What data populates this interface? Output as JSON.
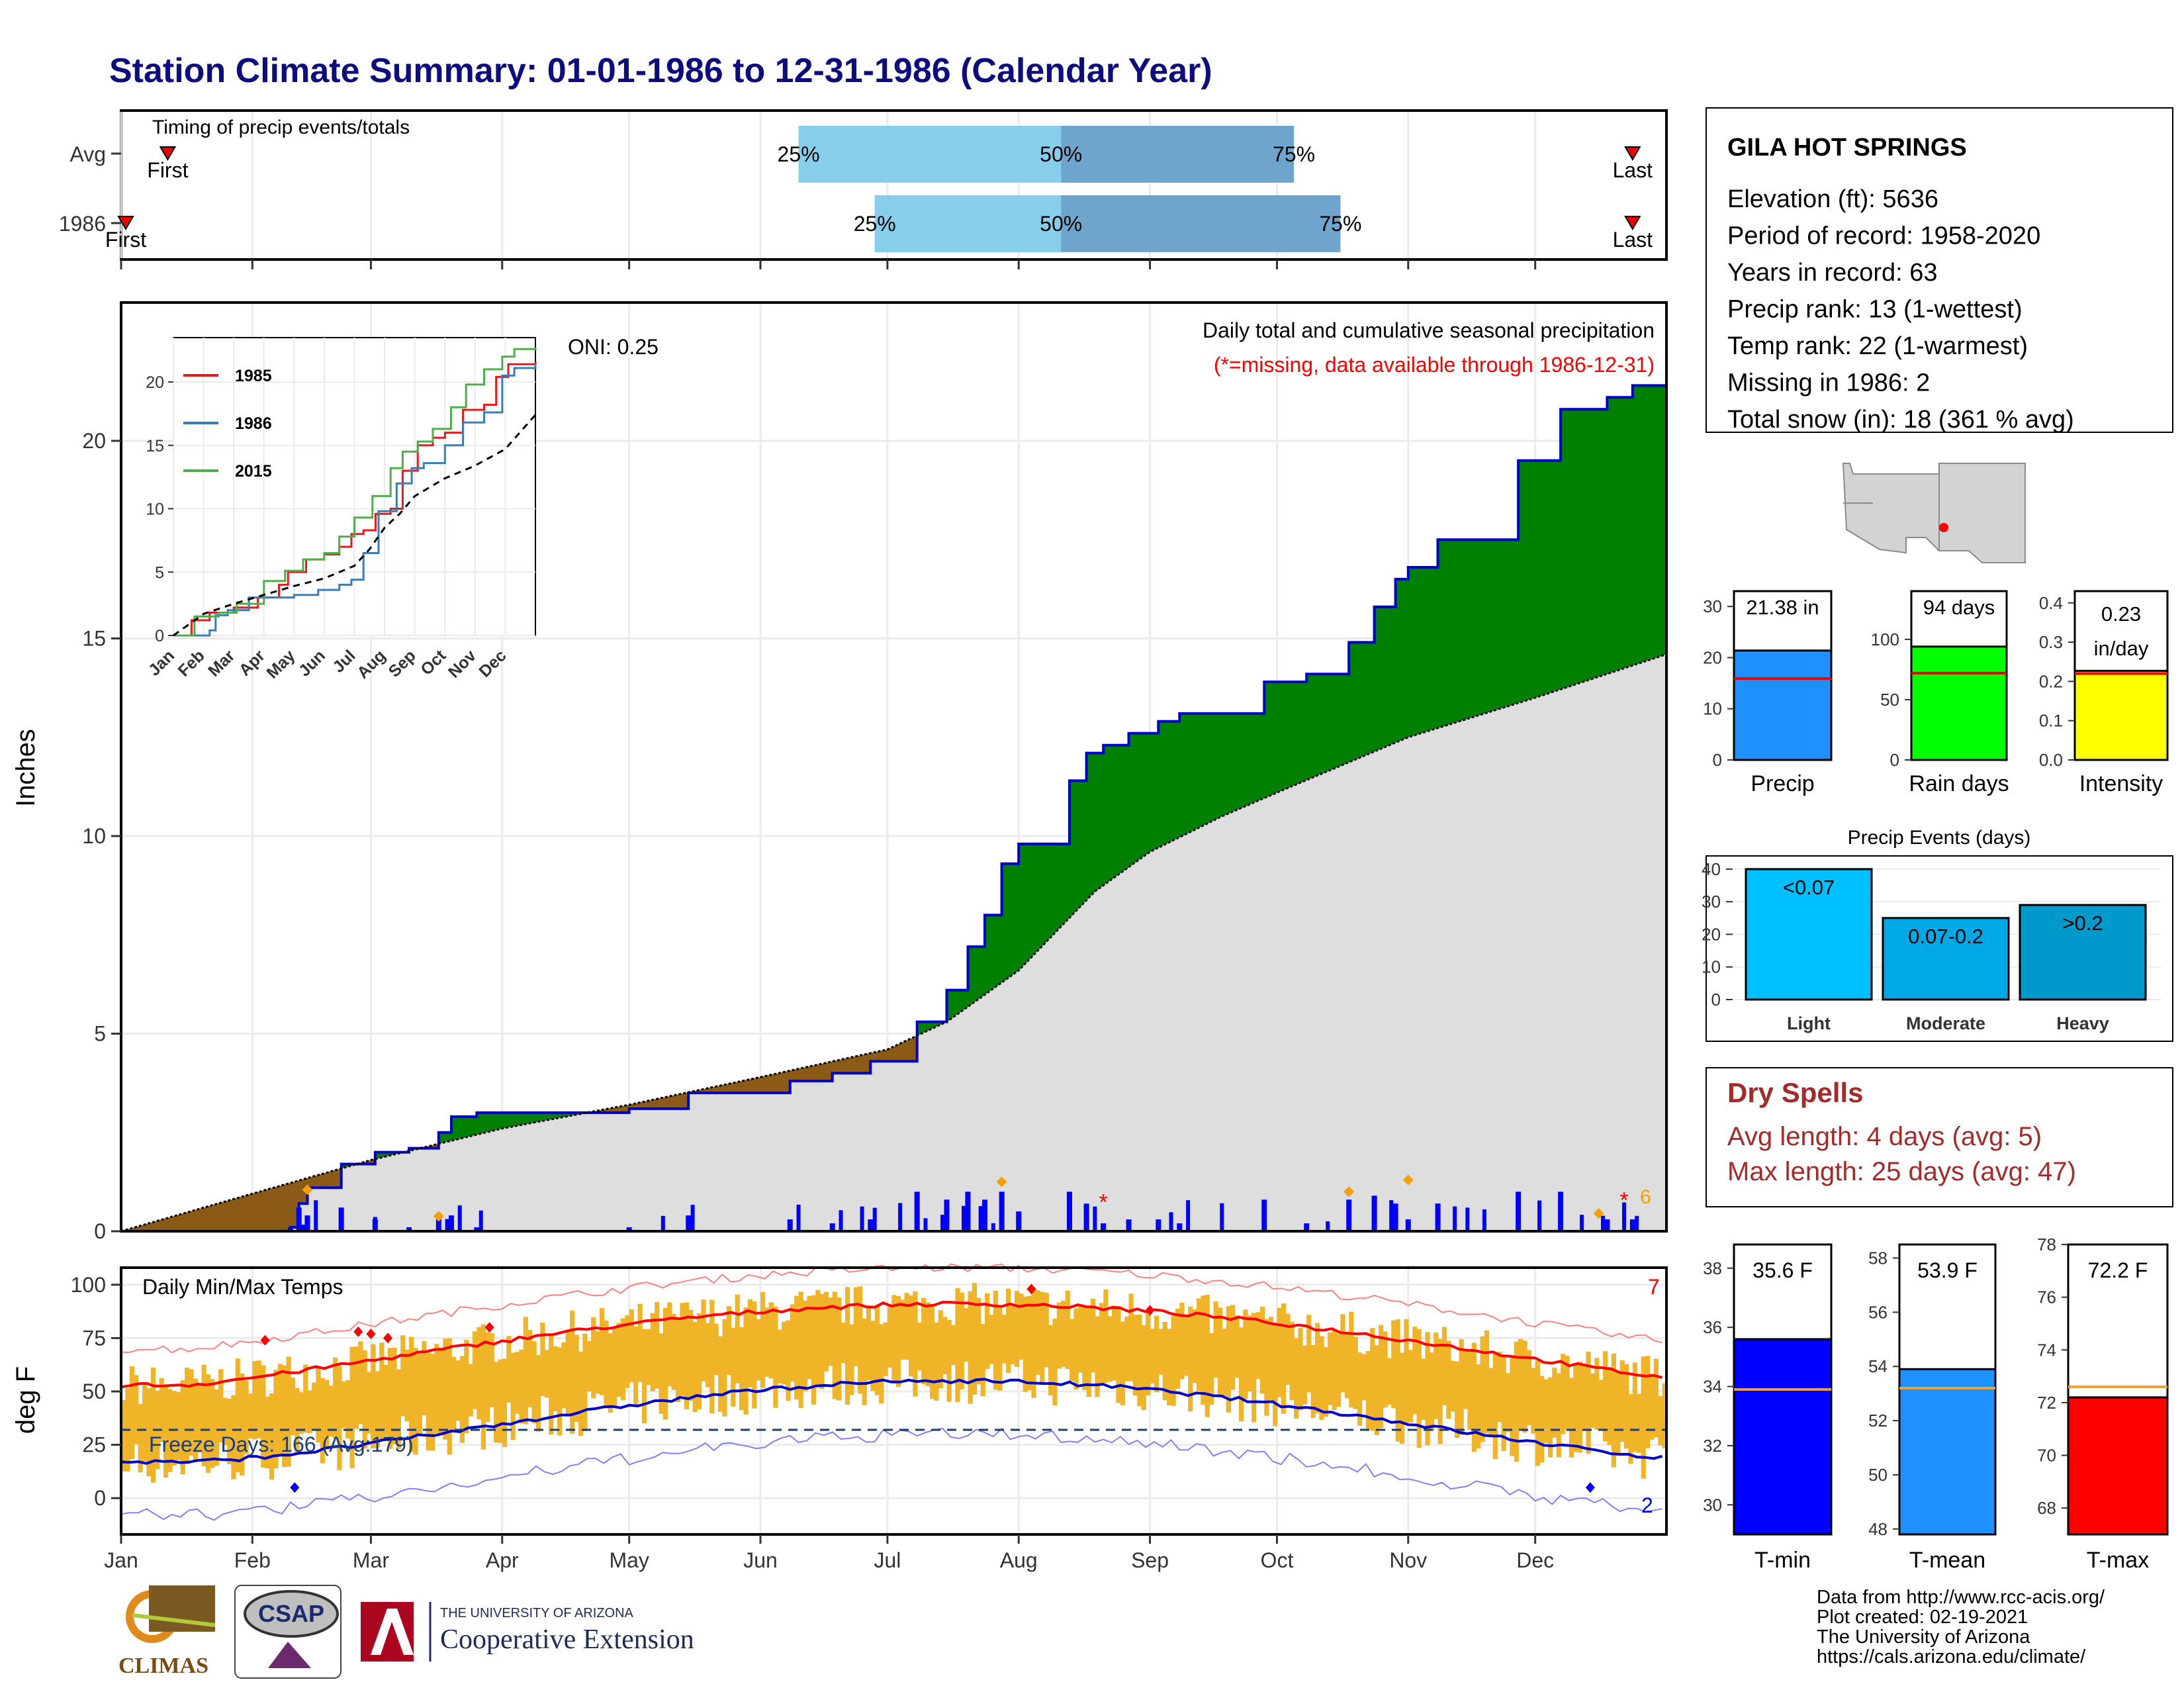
{
  "page_title": "Station Climate Summary: 01-01-1986 to 12-31-1986 (Calendar Year)",
  "timing_panel": {
    "title": "Timing of precip events/totals",
    "rows": [
      {
        "label": "Avg",
        "first_label": "First",
        "last_label": "Last",
        "first_day": 11,
        "last_day": 357,
        "p25_day": 160,
        "p50_day": 222,
        "p75_day": 277,
        "p25_label": "25%",
        "p50_label": "50%",
        "p75_label": "75%"
      },
      {
        "label": "1986",
        "first_label": "First",
        "last_label": "Last",
        "first_day": 1,
        "last_day": 357,
        "p25_day": 178,
        "p50_day": 222,
        "p75_day": 288,
        "p25_label": "25%",
        "p50_label": "50%",
        "p75_label": "75%"
      }
    ]
  },
  "precip_panel": {
    "ylabel": "Inches",
    "ylim": [
      0,
      23.5
    ],
    "yticks": [
      0,
      5,
      10,
      15,
      20
    ],
    "oni_label": "ONI: 0.25",
    "title": "Daily total and cumulative seasonal precipitation",
    "missing_note": "(*=missing, data available through 1986-12-31)",
    "missing_count": "6",
    "colors": {
      "above_avg": "#008000",
      "avg_fill": "#dedede",
      "below_avg": "#8b5a16",
      "daily_bar": "#0000ff",
      "line": "#0000cc"
    }
  },
  "inset": {
    "yticks": [
      0,
      5,
      10,
      15,
      20
    ],
    "months": [
      "Jan",
      "Feb",
      "Mar",
      "Apr",
      "May",
      "Jun",
      "Jul",
      "Aug",
      "Sep",
      "Oct",
      "Nov",
      "Dec"
    ],
    "legend": [
      {
        "name": "1985",
        "color": "#e41a1c"
      },
      {
        "name": "1986",
        "color": "#377eb8"
      },
      {
        "name": "2015",
        "color": "#4daf4a"
      }
    ]
  },
  "temp_panel": {
    "ylabel": "deg F",
    "title": "Daily Min/Max Temps",
    "yticks": [
      0,
      25,
      50,
      75,
      100
    ],
    "ylim": [
      -17,
      108
    ],
    "freeze_label": "Freeze Days: 166 (Avg:179)",
    "max_count": "7",
    "min_count": "2",
    "freeze_line": 32
  },
  "x_months": [
    "Jan",
    "Feb",
    "Mar",
    "Apr",
    "May",
    "Jun",
    "Jul",
    "Aug",
    "Sep",
    "Oct",
    "Nov",
    "Dec"
  ],
  "station": {
    "name": "GILA HOT SPRINGS",
    "lines": [
      "Elevation (ft): 5636",
      "Period of record: 1958-2020",
      "Years in record: 63",
      "Precip rank: 13 (1-wettest)",
      "Temp rank: 22 (1-warmest)",
      "Missing in 1986: 2",
      "Total snow (in): 18 (361 % avg)"
    ]
  },
  "summary_bars": [
    {
      "label": "Precip",
      "value_label": "21.38 in",
      "value": 21.38,
      "avg": 15.9,
      "ymax": 33,
      "ticks": [
        0,
        10,
        20,
        30
      ],
      "color": "#1e90ff"
    },
    {
      "label": "Rain days",
      "value_label": "94 days",
      "value": 94,
      "avg": 72,
      "ymax": 140,
      "ticks": [
        0,
        50,
        100
      ],
      "color": "#00ff00"
    },
    {
      "label": "Intensity",
      "value_label_1": "0.23",
      "value_label_2": "in/day",
      "value": 0.227,
      "avg": 0.22,
      "ymax": 0.43,
      "ticks": [
        "0.0",
        "0.1",
        "0.2",
        "0.3",
        "0.4"
      ],
      "color": "#ffff00"
    }
  ],
  "precip_events": {
    "title": "Precip Events (days)",
    "ymax": 41,
    "ticks": [
      0,
      10,
      20,
      30,
      40
    ],
    "bars": [
      {
        "category": "Light",
        "label": "<0.07",
        "value": 40,
        "color": "#00bfff"
      },
      {
        "category": "Moderate",
        "label": "0.07-0.2",
        "value": 25,
        "color": "#00a9e6"
      },
      {
        "category": "Heavy",
        "label": ">0.2",
        "value": 29,
        "color": "#0099cc"
      }
    ]
  },
  "dry_spells": {
    "title": "Dry Spells",
    "avg_length": "Avg length: 4 days (avg: 5)",
    "max_length": "Max length: 25 days (avg: 47)",
    "color": "#a52a2a"
  },
  "temp_bars": [
    {
      "label": "T-min",
      "value_label": "35.6 F",
      "value": 35.6,
      "avg": 33.9,
      "ymin": 29,
      "ymax": 38.8,
      "ticks": [
        30,
        32,
        34,
        36,
        38
      ],
      "color": "#0000ff"
    },
    {
      "label": "T-mean",
      "value_label": "53.9 F",
      "value": 53.9,
      "avg": 53.2,
      "ymin": 47.8,
      "ymax": 58.5,
      "ticks": [
        48,
        50,
        52,
        54,
        56,
        58
      ],
      "color": "#1e90ff"
    },
    {
      "label": "T-max",
      "value_label": "72.2 F",
      "value": 72.2,
      "avg": 72.6,
      "ymin": 67,
      "ymax": 78,
      "ticks": [
        68,
        70,
        72,
        74,
        76,
        78
      ],
      "color": "#ff0000"
    }
  ],
  "footer": {
    "logos": {
      "climas": "CLIMAS",
      "csap": "CSAP",
      "ua_top": "THE UNIVERSITY OF ARIZONA",
      "ua_bottom": "Cooperative Extension"
    },
    "credits": [
      "Data from http://www.rcc-acis.org/",
      "Plot created: 02-19-2021",
      "The University of Arizona",
      "https://cals.arizona.edu/climate/"
    ]
  }
}
